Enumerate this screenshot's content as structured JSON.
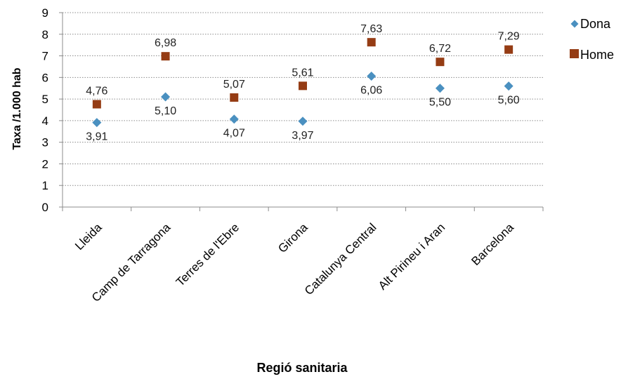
{
  "chart_data": {
    "type": "scatter",
    "title": "",
    "xlabel": "Regió sanitaria",
    "ylabel": "Taxa /1.000 hab",
    "ylim": [
      0,
      9
    ],
    "yticks": [
      "0",
      "1",
      "2",
      "3",
      "4",
      "5",
      "6",
      "7",
      "8",
      "9"
    ],
    "grid": true,
    "legend_position": "right",
    "categories": [
      "Lleida",
      "Camp de Tarragona",
      "Terres de l'Ebre",
      "Girona",
      "Catalunya Central",
      "Alt Pirineu i Aran",
      "Barcelona"
    ],
    "series": [
      {
        "name": "Dona",
        "marker": "diamond",
        "color": "#4a90c0",
        "values": [
          3.91,
          5.1,
          4.07,
          3.97,
          6.06,
          5.5,
          5.6
        ],
        "labels": [
          "3,91",
          "5,10",
          "4,07",
          "3,97",
          "6,06",
          "5,50",
          "5,60"
        ]
      },
      {
        "name": "Home",
        "marker": "square",
        "color": "#953c14",
        "values": [
          4.76,
          6.98,
          5.07,
          5.61,
          7.63,
          6.72,
          7.29
        ],
        "labels": [
          "4,76",
          "6,98",
          "5,07",
          "5,61",
          "7,63",
          "6,72",
          "7,29"
        ]
      }
    ]
  }
}
